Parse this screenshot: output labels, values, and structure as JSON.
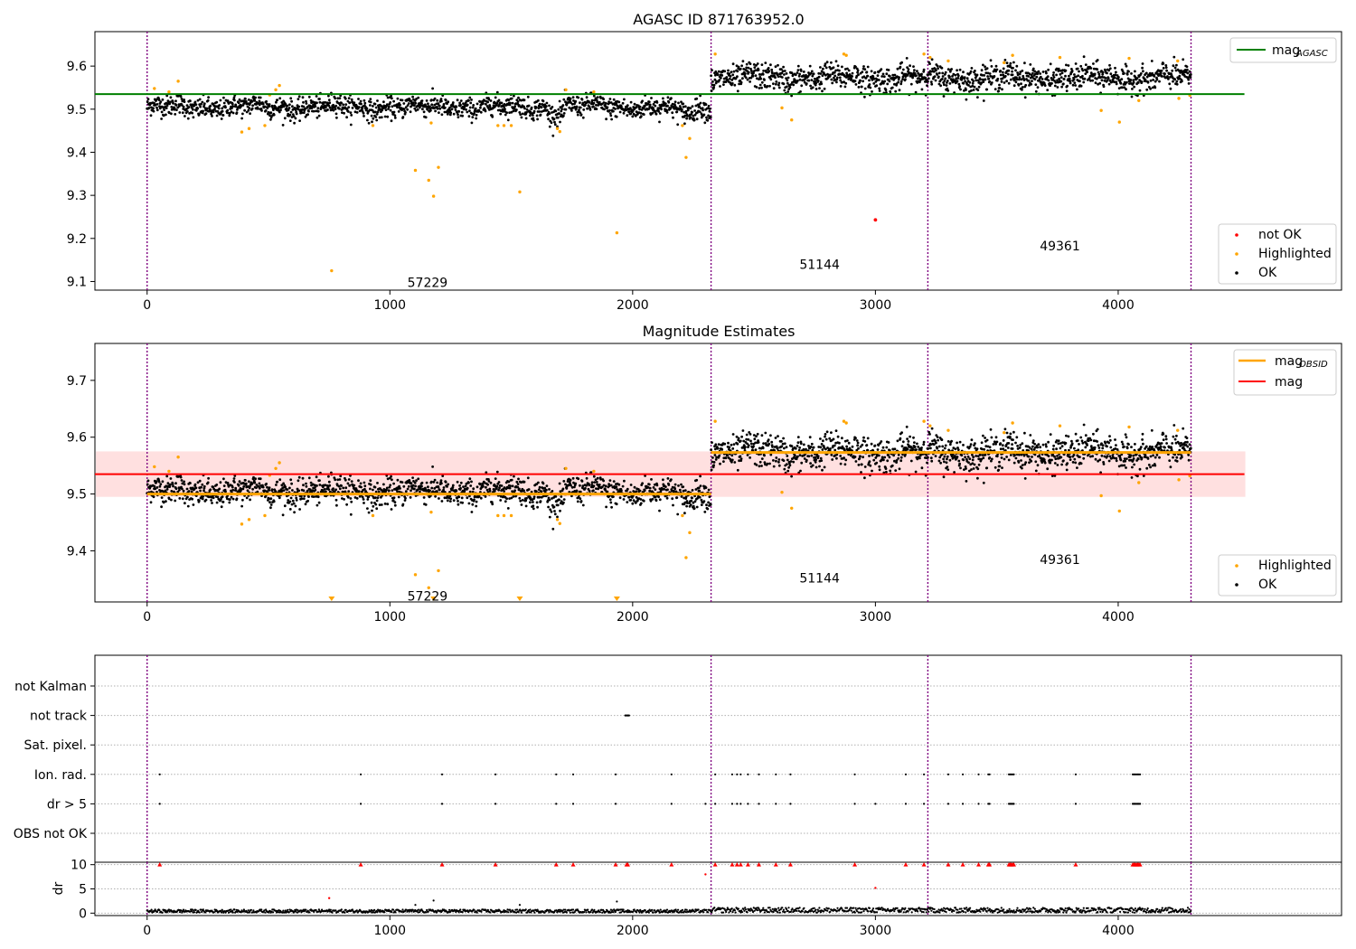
{
  "chart_data": [
    {
      "type": "scatter",
      "title": "AGASC ID 871763952.0",
      "xlim": [
        -215,
        4920
      ],
      "ylim": [
        9.08,
        9.68
      ],
      "xticks": [
        0,
        1000,
        2000,
        3000,
        4000
      ],
      "yticks": [
        9.1,
        9.2,
        9.3,
        9.4,
        9.5,
        9.6
      ],
      "obs_boundaries": [
        0,
        2323,
        3216,
        4300
      ],
      "obs_labels": [
        {
          "text": "57229",
          "x": 1155,
          "y": 9.098
        },
        {
          "text": "51144",
          "x": 2770,
          "y": 9.14
        },
        {
          "text": "49361",
          "x": 3760,
          "y": 9.183
        }
      ],
      "reference_lines": [
        {
          "name": "mag_AGASC",
          "value": 9.535,
          "x": [
            -215,
            4520
          ],
          "color": "#008000"
        }
      ],
      "segments": [
        {
          "x": [
            0,
            2323
          ],
          "mean": 9.505,
          "sd": 0.012
        },
        {
          "x": [
            2323,
            4300
          ],
          "mean": 9.573,
          "sd": 0.015
        }
      ],
      "highlighted": [
        [
          760,
          9.125
        ],
        [
          1105,
          9.358
        ],
        [
          1160,
          9.335
        ],
        [
          1180,
          9.298
        ],
        [
          1200,
          9.365
        ],
        [
          1535,
          9.308
        ],
        [
          1935,
          9.213
        ],
        [
          390,
          9.447
        ],
        [
          420,
          9.455
        ],
        [
          485,
          9.462
        ],
        [
          505,
          9.533
        ],
        [
          530,
          9.545
        ],
        [
          545,
          9.555
        ],
        [
          128,
          9.565
        ],
        [
          30,
          9.548
        ],
        [
          90,
          9.54
        ],
        [
          1700,
          9.448
        ],
        [
          1690,
          9.455
        ],
        [
          1725,
          9.545
        ],
        [
          1445,
          9.462
        ],
        [
          1470,
          9.462
        ],
        [
          1500,
          9.462
        ],
        [
          930,
          9.462
        ],
        [
          2220,
          9.388
        ],
        [
          2235,
          9.432
        ],
        [
          2205,
          9.462
        ],
        [
          2615,
          9.503
        ],
        [
          2655,
          9.475
        ],
        [
          2340,
          9.628
        ],
        [
          2870,
          9.628
        ],
        [
          2880,
          9.625
        ],
        [
          3200,
          9.628
        ],
        [
          3300,
          9.612
        ],
        [
          3225,
          9.62
        ],
        [
          3530,
          9.608
        ],
        [
          3565,
          9.625
        ],
        [
          3760,
          9.62
        ],
        [
          3930,
          9.497
        ],
        [
          4005,
          9.47
        ],
        [
          4045,
          9.618
        ],
        [
          4085,
          9.52
        ],
        [
          4245,
          9.612
        ],
        [
          4250,
          9.525
        ],
        [
          4295,
          9.532
        ],
        [
          1840,
          9.54
        ],
        [
          1170,
          9.468
        ]
      ],
      "not_ok": [
        [
          3000,
          9.243
        ]
      ],
      "legend_top": {
        "position": "upper right",
        "entries": [
          {
            "label": "mag",
            "sub": "AGASC",
            "color": "#008000"
          }
        ]
      },
      "legend_bottom": {
        "position": "lower right",
        "entries": [
          {
            "label": "not OK",
            "color": "#ff0000"
          },
          {
            "label": "Highlighted",
            "color": "#ffa500"
          },
          {
            "label": "OK",
            "color": "#000000"
          }
        ]
      }
    },
    {
      "type": "scatter",
      "title": "Magnitude Estimates",
      "xlim": [
        -215,
        4920
      ],
      "ylim": [
        9.31,
        9.765
      ],
      "xticks": [
        0,
        1000,
        2000,
        3000,
        4000
      ],
      "yticks": [
        9.4,
        9.5,
        9.6,
        9.7
      ],
      "obs_boundaries": [
        0,
        2323,
        3216,
        4300
      ],
      "obs_labels": [
        {
          "text": "57229",
          "x": 1155,
          "y": 9.32
        },
        {
          "text": "51144",
          "x": 2770,
          "y": 9.352
        },
        {
          "text": "49361",
          "x": 3760,
          "y": 9.385
        }
      ],
      "mag_line": {
        "name": "mag",
        "value": 9.535,
        "band": [
          9.495,
          9.575
        ],
        "x": [
          -215,
          4520
        ],
        "color": "#ff0000"
      },
      "obsid_mags": [
        {
          "x": [
            0,
            2323
          ],
          "value": 9.5
        },
        {
          "x": [
            2323,
            4300
          ],
          "value": 9.573
        }
      ],
      "clipped_markers": [
        760,
        1180,
        1535,
        1935
      ],
      "legend_top": {
        "position": "upper right",
        "entries": [
          {
            "label": "mag",
            "sub": "OBSID",
            "color": "#ffa500"
          },
          {
            "label": "mag",
            "color": "#ff0000"
          }
        ]
      },
      "legend_bottom": {
        "position": "lower right",
        "entries": [
          {
            "label": "Highlighted",
            "color": "#ffa500"
          },
          {
            "label": "OK",
            "color": "#000000"
          }
        ]
      }
    },
    {
      "type": "scatter",
      "categories": [
        "OBS not OK",
        "dr > 5",
        "Ion. rad.",
        "Sat. pixel.",
        "not track",
        "not Kalman"
      ],
      "flag_times": {
        "Ion. rad.": [
          52,
          880,
          1215,
          1435,
          1685,
          1755,
          1930,
          2160,
          2340,
          2410,
          2430,
          2445,
          2475,
          2520,
          2590,
          2650,
          2915,
          3125,
          3200,
          3300,
          3360,
          3425,
          3465,
          3470,
          3550,
          3555,
          3560,
          3565,
          3570,
          3825,
          4060,
          4065,
          4070,
          4075,
          4080,
          4085,
          4090
        ],
        "dr > 5": [
          52,
          880,
          1215,
          1435,
          1685,
          1755,
          1930,
          2160,
          2300,
          2340,
          2410,
          2430,
          2445,
          2475,
          2520,
          2590,
          2650,
          2915,
          3000,
          3125,
          3200,
          3300,
          3360,
          3425,
          3465,
          3470,
          3550,
          3555,
          3560,
          3565,
          3570,
          3825,
          4060,
          4065,
          4070,
          4075,
          4080,
          4085,
          4090
        ],
        "not track": [
          1970,
          1975,
          1980,
          1985
        ]
      },
      "xlim": [
        -215,
        4920
      ],
      "obs_boundaries": [
        0,
        2323,
        3216,
        4300
      ]
    },
    {
      "type": "scatter",
      "ylabel": "dr",
      "ylim": [
        -0.5,
        10.5
      ],
      "yticks": [
        0,
        5,
        10
      ],
      "xlim": [
        -215,
        4920
      ],
      "xticks": [
        0,
        1000,
        2000,
        3000,
        4000
      ],
      "obs_boundaries": [
        0,
        2323,
        3216,
        4300
      ],
      "clipped_times": [
        52,
        880,
        1215,
        1435,
        1685,
        1755,
        1930,
        1975,
        1980,
        2160,
        2340,
        2410,
        2430,
        2445,
        2475,
        2520,
        2590,
        2650,
        2915,
        3125,
        3200,
        3300,
        3360,
        3425,
        3465,
        3470,
        3550,
        3555,
        3560,
        3565,
        3570,
        3825,
        4060,
        4065,
        4070,
        4075,
        4080,
        4085,
        4090
      ],
      "red_points": [
        [
          750,
          3.1
        ],
        [
          2300,
          8
        ],
        [
          3000,
          5.2
        ]
      ],
      "outliers": [
        [
          1105,
          1.7
        ],
        [
          1180,
          2.6
        ],
        [
          1535,
          1.7
        ],
        [
          1935,
          2.4
        ]
      ],
      "typical_range": [
        0.1,
        0.9
      ]
    }
  ]
}
